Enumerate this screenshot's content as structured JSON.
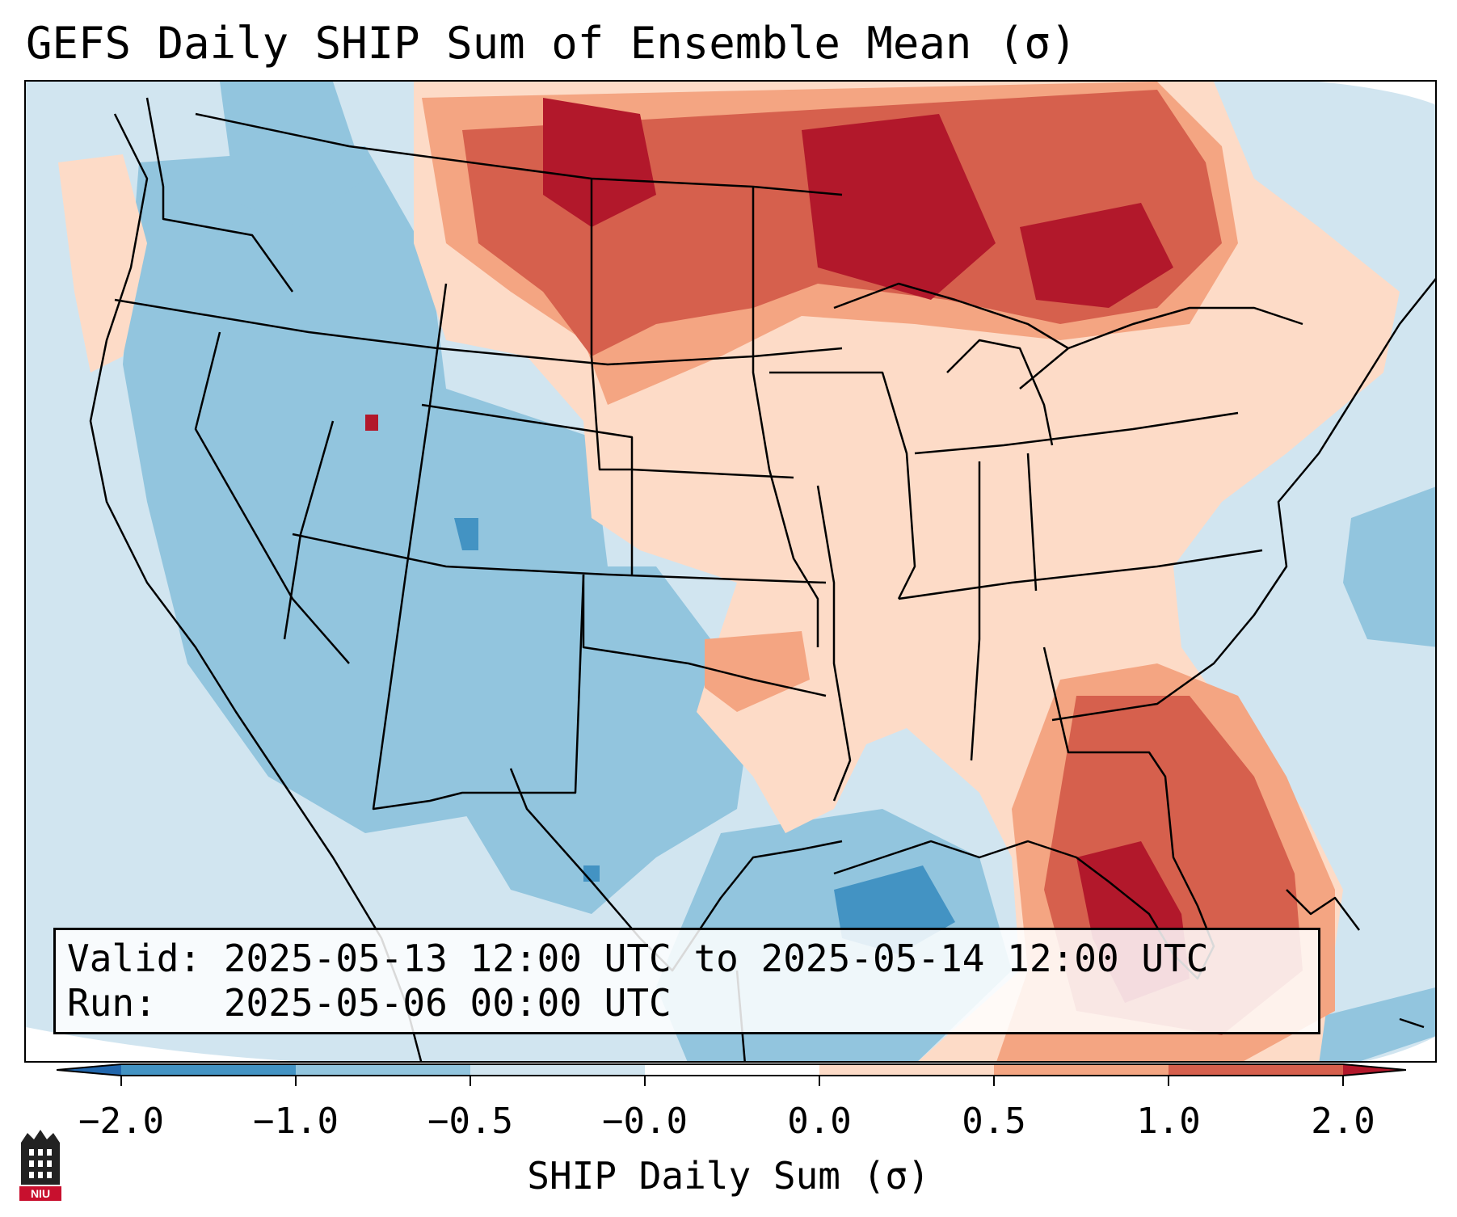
{
  "title": "GEFS Daily SHIP Sum of Ensemble Mean (σ)",
  "info": {
    "valid_line": "Valid: 2025-05-13 12:00 UTC to 2025-05-14 12:00 UTC",
    "run_line": "Run:   2025-05-06 00:00 UTC"
  },
  "colorbar": {
    "title": "SHIP Daily Sum (σ)",
    "ticks": [
      "−2.0",
      "−1.0",
      "−0.5",
      "−0.0",
      "0.0",
      "0.5",
      "1.0",
      "2.0"
    ],
    "colors": [
      "#4393c3",
      "#92c5de",
      "#d1e5f0",
      "#fddbc7",
      "#f4a582",
      "#d6604d",
      "#b2182b"
    ],
    "under_color": "#2166ac",
    "over_color": "#b2182b"
  },
  "logo": {
    "text": "NIU",
    "icon": "niu-university-logo"
  },
  "regions": [
    {
      "name": "background",
      "category": "-0.5"
    },
    {
      "name": "canada-north",
      "category": "1.0"
    },
    {
      "name": "dakotas-minnesota",
      "category": "0.5"
    },
    {
      "name": "great-lakes",
      "category": "2.0"
    },
    {
      "name": "southeast",
      "category": "1.0"
    },
    {
      "name": "florida",
      "category": "2.0"
    },
    {
      "name": "mountain-west",
      "category": "-1.0"
    },
    {
      "name": "gulf-of-mexico",
      "category": "-2.0"
    }
  ]
}
